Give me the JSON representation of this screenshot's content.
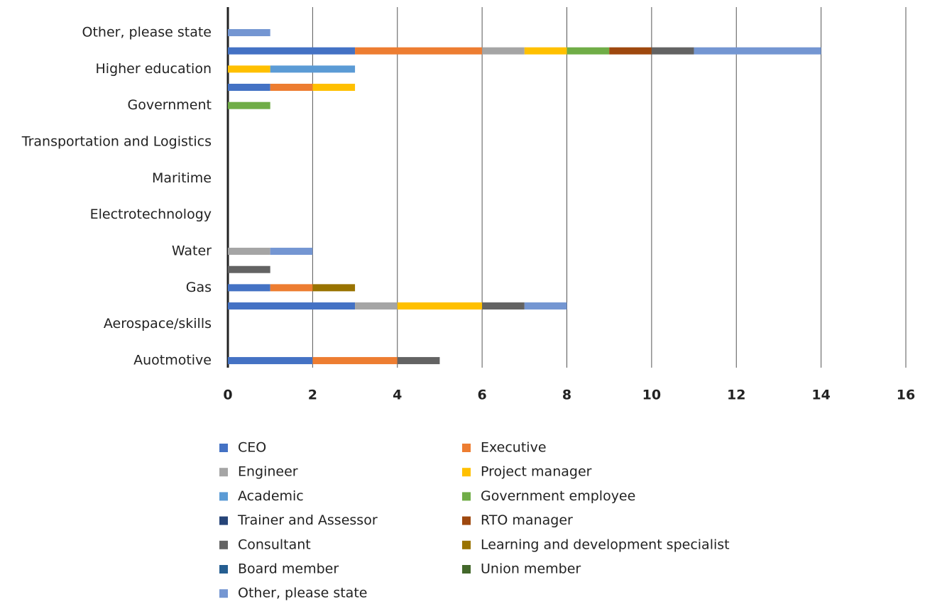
{
  "chart_data": {
    "type": "stacked_barh",
    "categories": [
      "Auotmotive",
      null,
      "Aerospace/skills",
      null,
      "Gas",
      null,
      "Water",
      null,
      "Electrotechnology",
      null,
      "Maritime",
      null,
      "Transportation and Logistics",
      null,
      "Government",
      null,
      "Higher education",
      null,
      "Other, please state"
    ],
    "series": [
      {
        "name": "CEO",
        "color": "#4472c4",
        "values": [
          2,
          0,
          0,
          3,
          1,
          0,
          0,
          0,
          0,
          0,
          0,
          0,
          0,
          0,
          0,
          1,
          0,
          3,
          0
        ]
      },
      {
        "name": "Executive",
        "color": "#ed7d31",
        "values": [
          2,
          0,
          0,
          0,
          1,
          0,
          0,
          0,
          0,
          0,
          0,
          0,
          0,
          0,
          0,
          1,
          0,
          3,
          0
        ]
      },
      {
        "name": "Engineer",
        "color": "#a5a5a5",
        "values": [
          0,
          0,
          0,
          1,
          0,
          0,
          1,
          0,
          0,
          0,
          0,
          0,
          0,
          0,
          0,
          0,
          0,
          1,
          0
        ]
      },
      {
        "name": "Project manager",
        "color": "#ffc000",
        "values": [
          0,
          0,
          0,
          2,
          0,
          0,
          0,
          0,
          0,
          0,
          0,
          0,
          0,
          0,
          0,
          1,
          1,
          1,
          0
        ]
      },
      {
        "name": "Academic",
        "color": "#5b9bd5",
        "values": [
          0,
          0,
          0,
          0,
          0,
          0,
          0,
          0,
          0,
          0,
          0,
          0,
          0,
          0,
          0,
          0,
          2,
          0,
          0
        ]
      },
      {
        "name": "Government employee",
        "color": "#70ad47",
        "values": [
          0,
          0,
          0,
          0,
          0,
          0,
          0,
          0,
          0,
          0,
          0,
          0,
          0,
          0,
          1,
          0,
          0,
          1,
          0
        ]
      },
      {
        "name": "Trainer and Assessor",
        "color": "#264478",
        "values": [
          0,
          0,
          0,
          0,
          0,
          0,
          0,
          0,
          0,
          0,
          0,
          0,
          0,
          0,
          0,
          0,
          0,
          0,
          0
        ]
      },
      {
        "name": "RTO manager",
        "color": "#9e480e",
        "values": [
          0,
          0,
          0,
          0,
          0,
          0,
          0,
          0,
          0,
          0,
          0,
          0,
          0,
          0,
          0,
          0,
          0,
          1,
          0
        ]
      },
      {
        "name": "Consultant",
        "color": "#636363",
        "values": [
          1,
          0,
          0,
          1,
          0,
          1,
          0,
          0,
          0,
          0,
          0,
          0,
          0,
          0,
          0,
          0,
          0,
          1,
          0
        ]
      },
      {
        "name": "Learning and development specialist",
        "color": "#997300",
        "values": [
          0,
          0,
          0,
          0,
          1,
          0,
          0,
          0,
          0,
          0,
          0,
          0,
          0,
          0,
          0,
          0,
          0,
          0,
          0
        ]
      },
      {
        "name": "Board member",
        "color": "#255e91",
        "values": [
          0,
          0,
          0,
          0,
          0,
          0,
          0,
          0,
          0,
          0,
          0,
          0,
          0,
          0,
          0,
          0,
          0,
          0,
          0
        ]
      },
      {
        "name": "Union member",
        "color": "#43682b",
        "values": [
          0,
          0,
          0,
          0,
          0,
          0,
          0,
          0,
          0,
          0,
          0,
          0,
          0,
          0,
          0,
          0,
          0,
          0,
          0
        ]
      },
      {
        "name": "Other, please state",
        "color": "#7496d2",
        "values": [
          0,
          0,
          0,
          1,
          0,
          0,
          1,
          0,
          0,
          0,
          0,
          0,
          0,
          0,
          0,
          0,
          0,
          3,
          1
        ]
      }
    ],
    "xlim": [
      0,
      16
    ],
    "xticks": [
      0,
      2,
      4,
      6,
      8,
      10,
      12,
      14,
      16
    ],
    "grid": true
  }
}
